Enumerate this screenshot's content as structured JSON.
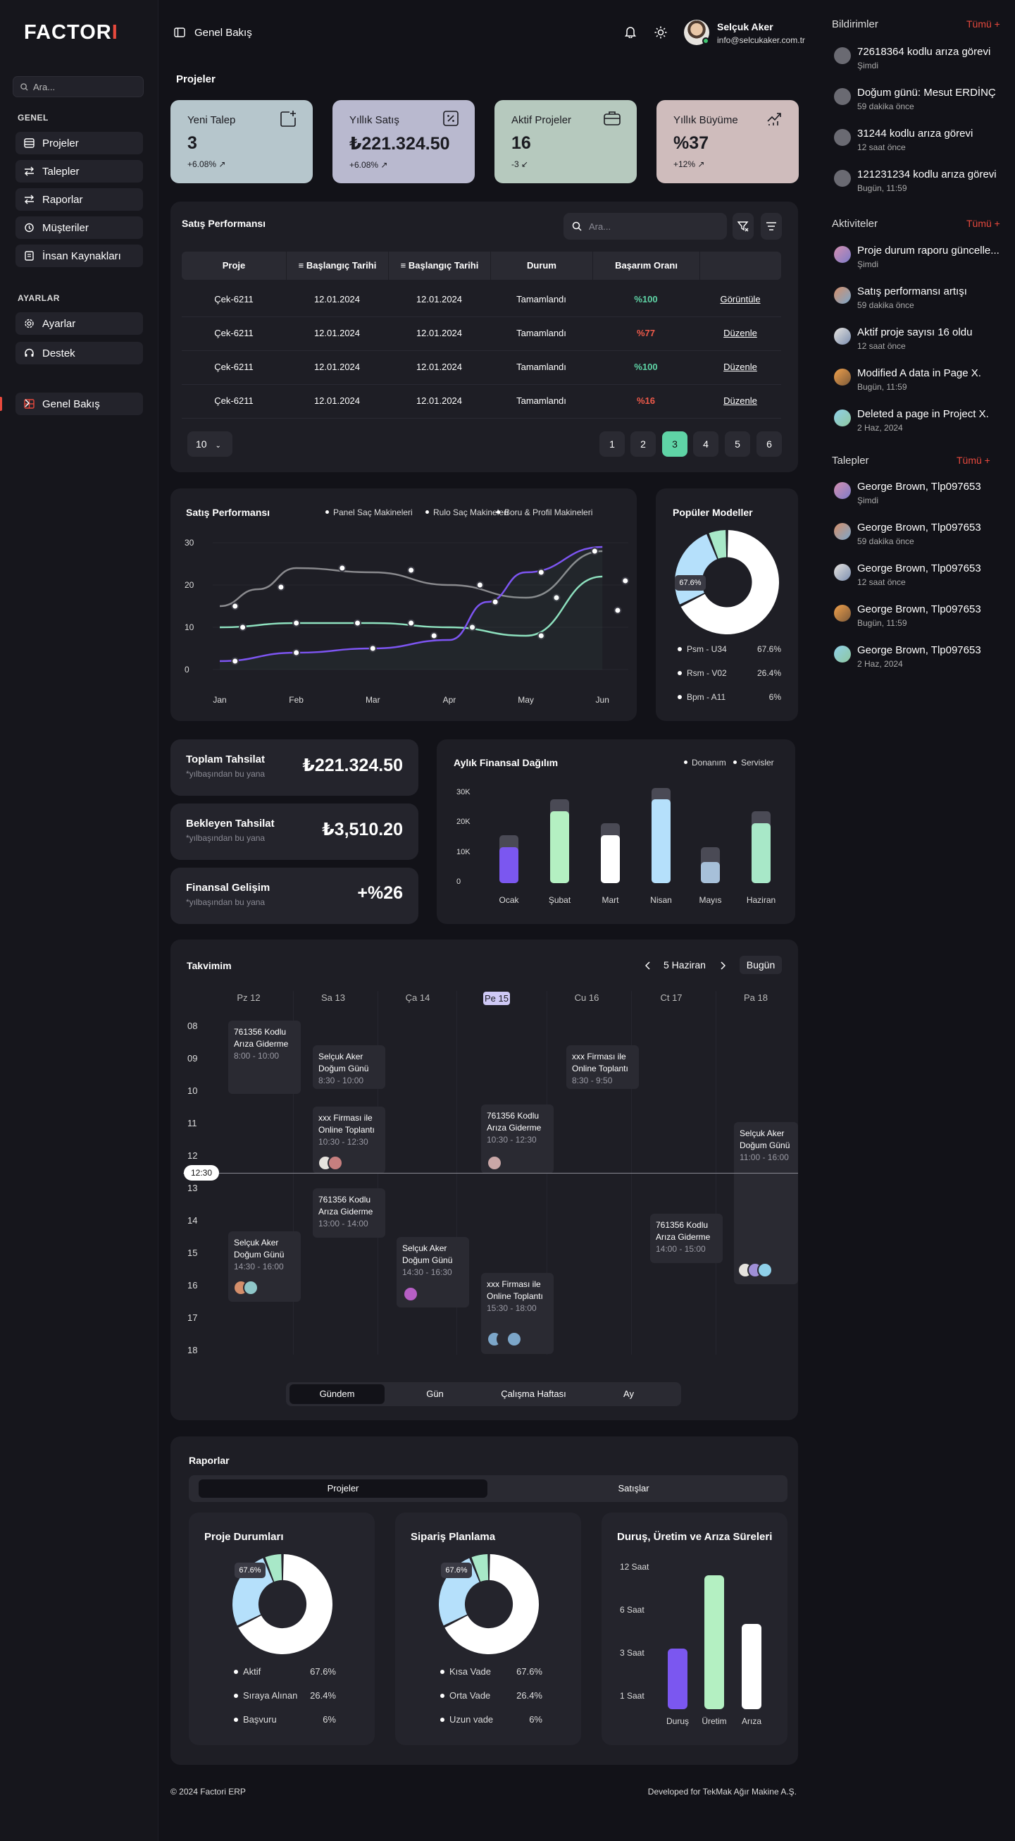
{
  "app": {
    "logo_text": "FACTORI",
    "page_title": "Genel Bakış"
  },
  "user": {
    "name": "Selçuk Aker",
    "email": "info@selcukaker.com.tr"
  },
  "sidebar": {
    "search_placeholder": "Ara...",
    "section_general": "GENEL",
    "general_items": [
      {
        "label": "Projeler",
        "icon": "table-icon"
      },
      {
        "label": "Talepler",
        "icon": "arrows-icon"
      },
      {
        "label": "Raporlar",
        "icon": "arrows-icon"
      },
      {
        "label": "Müşteriler",
        "icon": "history-icon"
      },
      {
        "label": "İnsan Kaynakları",
        "icon": "document-icon"
      }
    ],
    "section_settings": "AYARLAR",
    "settings_items": [
      {
        "label": "Ayarlar",
        "icon": "gear-icon"
      },
      {
        "label": "Destek",
        "icon": "headset-icon"
      }
    ],
    "active_item": "Genel Bakış"
  },
  "projects": {
    "title": "Projeler",
    "stats": [
      {
        "title": "Yeni Talep",
        "value": "3",
        "change": "+6.08%",
        "color": "#b6c6cc"
      },
      {
        "title": "Yıllık Satış",
        "value": "₺221.324.50",
        "change": "+6.08%",
        "color": "#b9b9cf"
      },
      {
        "title": "Aktif Projeler",
        "value": "16",
        "change": "-3",
        "color": "#b6c9be"
      },
      {
        "title": "Yıllık Büyüme",
        "value": "%37",
        "change": "+12%",
        "color": "#cfbcbc"
      }
    ]
  },
  "sales_table": {
    "title": "Satış Performansı",
    "search_placeholder": "Ara...",
    "headers": [
      "Proje",
      "Başlangıç Tarihi",
      "Başlangıç Tarihi",
      "Durum",
      "Başarım Oranı"
    ],
    "rows": [
      {
        "proje": "Çek-6211",
        "start1": "12.01.2024",
        "start2": "12.01.2024",
        "durum": "Tamamlandı",
        "rate": "%100",
        "rate_color": "#5fd4a6",
        "action": "Görüntüle"
      },
      {
        "proje": "Çek-6211",
        "start1": "12.01.2024",
        "start2": "12.01.2024",
        "durum": "Tamamlandı",
        "rate": "%77",
        "rate_color": "#ef5a4a",
        "action": "Düzenle"
      },
      {
        "proje": "Çek-6211",
        "start1": "12.01.2024",
        "start2": "12.01.2024",
        "durum": "Tamamlandı",
        "rate": "%100",
        "rate_color": "#5fd4a6",
        "action": "Düzenle"
      },
      {
        "proje": "Çek-6211",
        "start1": "12.01.2024",
        "start2": "12.01.2024",
        "durum": "Tamamlandı",
        "rate": "%16",
        "rate_color": "#ef5a4a",
        "action": "Düzenle"
      }
    ],
    "page_size": "10",
    "pages": [
      "1",
      "2",
      "3",
      "4",
      "5",
      "6"
    ],
    "active_page": "3"
  },
  "chart_data": [
    {
      "type": "line",
      "title": "Satış Performansı",
      "categories": [
        "Jan",
        "Feb",
        "Mar",
        "Apr",
        "May",
        "Jun"
      ],
      "yticks": [
        "0",
        "10",
        "20",
        "30"
      ],
      "ylim": [
        0,
        30
      ],
      "series": [
        {
          "name": "Panel Saç Makineleri",
          "color": "#8a8a8e",
          "points": [
            [
              0,
              15
            ],
            [
              0.5,
              19
            ],
            [
              1,
              24
            ],
            [
              2,
              23
            ],
            [
              3,
              20
            ],
            [
              4,
              17
            ],
            [
              5,
              28
            ]
          ]
        },
        {
          "name": "Rulo Saç Makineleri",
          "color": "#8fe2c0",
          "points": [
            [
              0,
              10
            ],
            [
              1,
              11
            ],
            [
              2,
              11
            ],
            [
              3,
              10
            ],
            [
              4,
              8
            ],
            [
              5,
              22
            ]
          ]
        },
        {
          "name": "Boru & Profil Makineleri",
          "color": "#7d55f2",
          "points": [
            [
              0,
              2
            ],
            [
              1,
              4
            ],
            [
              2,
              5
            ],
            [
              3,
              7
            ],
            [
              3.5,
              16
            ],
            [
              4,
              23
            ],
            [
              5,
              29
            ]
          ]
        }
      ],
      "marker_points": [
        [
          [
            0.2,
            15
          ],
          [
            0.8,
            19.5
          ],
          [
            1.6,
            24
          ],
          [
            2.5,
            23.5
          ],
          [
            3.4,
            20
          ],
          [
            4.4,
            17
          ],
          [
            5.3,
            21
          ]
        ],
        [
          [
            0.3,
            10
          ],
          [
            1,
            11
          ],
          [
            1.8,
            11
          ],
          [
            2.5,
            11
          ],
          [
            3.3,
            10
          ],
          [
            4.2,
            8
          ],
          [
            5.2,
            14
          ]
        ],
        [
          [
            0.2,
            2
          ],
          [
            1,
            4
          ],
          [
            2,
            5
          ],
          [
            2.8,
            8
          ],
          [
            3.6,
            16
          ],
          [
            4.2,
            23
          ],
          [
            4.9,
            28
          ]
        ]
      ]
    },
    {
      "type": "pie",
      "title": "Popüler Modeller",
      "highlight": "67.6%",
      "slices": [
        {
          "label": "Psm - U34",
          "value": 67.6,
          "display": "67.6%",
          "color": "#ffffff"
        },
        {
          "label": "Rsm - V02",
          "value": 26.4,
          "display": "26.4%",
          "color": "#b5e0fb"
        },
        {
          "label": "Bpm - A11",
          "value": 6,
          "display": "6%",
          "color": "#a8e8c8"
        }
      ]
    },
    {
      "type": "bar",
      "title": "Aylık Finansal Dağılım",
      "legend": [
        "Donanım",
        "Servisler"
      ],
      "categories": [
        "Ocak",
        "Şubat",
        "Mart",
        "Nisan",
        "Mayıs",
        "Haziran"
      ],
      "yticks": [
        "0",
        "10K",
        "20K",
        "30K"
      ],
      "ylim": [
        0,
        30000
      ],
      "series": [
        {
          "name": "Donanım",
          "values": [
            12000,
            24000,
            16000,
            28000,
            7000,
            20000
          ]
        },
        {
          "name": "Servisler",
          "values": [
            16000,
            28000,
            20000,
            32000,
            12000,
            24000
          ]
        }
      ],
      "colors": [
        "#7b57f0",
        "#b4f0c2",
        "#ffffff",
        "#b5e0fb",
        "#a7c0d9",
        "#a8e8c8"
      ]
    },
    {
      "type": "pie",
      "title": "Proje Durumları",
      "highlight": "67.6%",
      "slices": [
        {
          "label": "Aktif",
          "value": 67.6,
          "display": "67.6%",
          "color": "#ffffff"
        },
        {
          "label": "Sıraya Alınan",
          "value": 26.4,
          "display": "26.4%",
          "color": "#b5e0fb"
        },
        {
          "label": "Başvuru",
          "value": 6,
          "display": "6%",
          "color": "#a8e8c8"
        }
      ]
    },
    {
      "type": "pie",
      "title": "Sipariş Planlama",
      "highlight": "67.6%",
      "slices": [
        {
          "label": "Kısa Vade",
          "value": 67.6,
          "display": "67.6%",
          "color": "#ffffff"
        },
        {
          "label": "Orta Vade",
          "value": 26.4,
          "display": "26.4%",
          "color": "#b5e0fb"
        },
        {
          "label": "Uzun vade",
          "value": 6,
          "display": "6%",
          "color": "#a8e8c8"
        }
      ]
    },
    {
      "type": "bar",
      "title": "Duruş, Üretim ve Arıza Süreleri",
      "yticks": [
        "1 Saat",
        "3 Saat",
        "6 Saat",
        "12 Saat"
      ],
      "categories": [
        "Duruş",
        "Üretim",
        "Arıza"
      ],
      "values": [
        5,
        11,
        7
      ],
      "colors": [
        "#7b57f0",
        "#b4f0c2",
        "#ffffff"
      ]
    }
  ],
  "finance": [
    {
      "title": "Toplam Tahsilat",
      "sub": "*yılbaşından bu yana",
      "value": "₺221.324.50"
    },
    {
      "title": "Bekleyen Tahsilat",
      "sub": "*yılbaşından bu yana",
      "value": "₺3,510.20"
    },
    {
      "title": "Finansal Gelişim",
      "sub": "*yılbaşından bu yana",
      "value": "+%26"
    }
  ],
  "calendar": {
    "title": "Takvimim",
    "date": "5 Haziran",
    "today": "Bugün",
    "now": "12:30",
    "days": [
      "Pz 12",
      "Sa 13",
      "Ça 14",
      "Pe 15",
      "Cu 16",
      "Ct 17",
      "Pa 18"
    ],
    "active_day": "Pe 15",
    "hours": [
      "08",
      "09",
      "10",
      "11",
      "12",
      "13",
      "14",
      "15",
      "16",
      "17",
      "18"
    ],
    "events": [
      {
        "title": "761356 Kodlu Arıza Giderme",
        "time": "8:00 - 10:00"
      },
      {
        "title": "Selçuk Aker Doğum Günü",
        "time": "8:30 - 10:00"
      },
      {
        "title": "xxx Firması ile Online Toplantı",
        "time": "8:30 - 9:50"
      },
      {
        "title": "xxx Firması ile Online Toplantı",
        "time": "10:30 - 12:30"
      },
      {
        "title": "761356 Kodlu Arıza Giderme",
        "time": "10:30 - 12:30"
      },
      {
        "title": "Selçuk Aker Doğum Günü",
        "time": "11:00 - 16:00"
      },
      {
        "title": "761356 Kodlu Arıza Giderme",
        "time": "13:00 - 14:00"
      },
      {
        "title": "761356 Kodlu Arıza Giderme",
        "time": "14:00 - 15:00"
      },
      {
        "title": "Selçuk Aker Doğum Günü",
        "time": "14:30 - 16:00"
      },
      {
        "title": "Selçuk Aker Doğum Günü",
        "time": "14:30 - 16:30"
      },
      {
        "title": "xxx Firması ile Online Toplantı",
        "time": "15:30 - 18:00"
      }
    ],
    "views": [
      "Gündem",
      "Gün",
      "Çalışma Haftası",
      "Ay"
    ],
    "active_view": "Gündem"
  },
  "reports": {
    "title": "Raporlar",
    "tabs": [
      "Projeler",
      "Satışlar"
    ],
    "active_tab": "Projeler"
  },
  "notifications": {
    "title": "Bildirimler",
    "more": "Tümü +",
    "items": [
      {
        "text": "72618364 kodlu arıza görevi",
        "time": "Şimdi"
      },
      {
        "text": "Doğum günü: Mesut ERDİNÇ",
        "time": "59 dakika önce"
      },
      {
        "text": "31244 kodlu arıza görevi",
        "time": "12 saat önce"
      },
      {
        "text": "121231234 kodlu arıza görevi",
        "time": "Bugün, 11:59"
      }
    ]
  },
  "activities": {
    "title": "Aktiviteler",
    "more": "Tümü +",
    "items": [
      {
        "text": "Proje durum raporu güncelle...",
        "time": "Şimdi"
      },
      {
        "text": "Satış performansı artışı",
        "time": "59 dakika önce"
      },
      {
        "text": "Aktif proje sayısı 16 oldu",
        "time": "12 saat önce"
      },
      {
        "text": "Modified A data in Page X.",
        "time": "Bugün, 11:59"
      },
      {
        "text": "Deleted a page in Project X.",
        "time": "2 Haz, 2024"
      }
    ]
  },
  "requests": {
    "title": "Talepler",
    "more": "Tümü +",
    "items": [
      {
        "text": "George Brown, Tlp097653",
        "time": "Şimdi"
      },
      {
        "text": "George Brown, Tlp097653",
        "time": "59 dakika önce"
      },
      {
        "text": "George Brown, Tlp097653",
        "time": "12 saat önce"
      },
      {
        "text": "George Brown, Tlp097653",
        "time": "Bugün, 11:59"
      },
      {
        "text": "George Brown, Tlp097653",
        "time": "2 Haz, 2024"
      }
    ]
  },
  "footer": {
    "left": "© 2024 Factori ERP",
    "right": "Developed for TekMak Ağır Makine A.Ş."
  }
}
